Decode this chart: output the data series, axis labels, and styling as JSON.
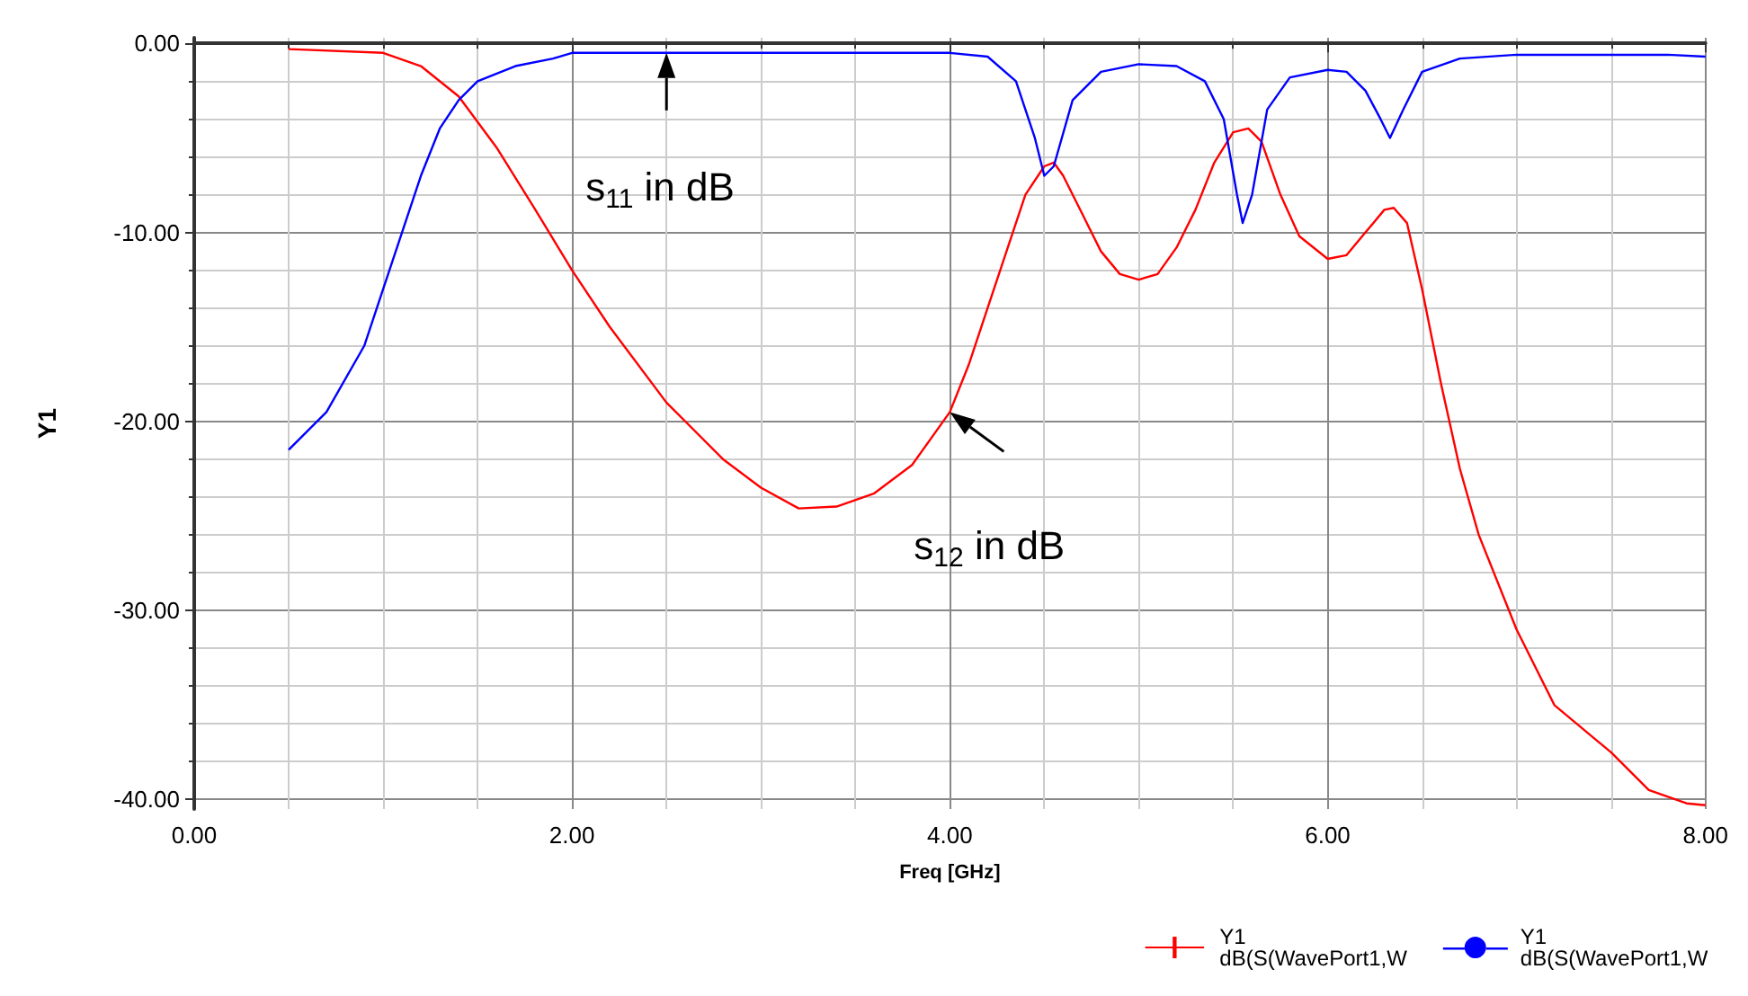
{
  "chart_data": {
    "type": "line",
    "xlabel": "Freq [GHz]",
    "ylabel": "Y1",
    "xlim": [
      0,
      8
    ],
    "xticks": [
      {
        "value": 0,
        "label": "0.00"
      },
      {
        "value": 2,
        "label": "2.00"
      },
      {
        "value": 4,
        "label": "4.00"
      },
      {
        "value": 6,
        "label": "6.00"
      },
      {
        "value": 8,
        "label": "8.00"
      }
    ],
    "ylim": [
      -40.5,
      0.3
    ],
    "yticks": [
      {
        "value": 0,
        "label": "0.00"
      },
      {
        "value": -10,
        "label": "-10.00"
      },
      {
        "value": -20,
        "label": "-20.00"
      },
      {
        "value": -30,
        "label": "-30.00"
      },
      {
        "value": -40,
        "label": "-40.00"
      }
    ],
    "grid": true,
    "legend": "bottom right",
    "marker": "none",
    "line_style": "solid",
    "series": [
      {
        "name": "Y1\ndB(S(WavePort1,W",
        "color": "#ff0000",
        "x": [
          0.5,
          1.0,
          1.2,
          1.4,
          1.6,
          1.8,
          2.0,
          2.2,
          2.5,
          2.8,
          3.0,
          3.2,
          3.4,
          3.6,
          3.8,
          4.0,
          4.1,
          4.2,
          4.3,
          4.4,
          4.5,
          4.55,
          4.6,
          4.7,
          4.8,
          4.9,
          5.0,
          5.1,
          5.2,
          5.3,
          5.4,
          5.5,
          5.58,
          5.65,
          5.75,
          5.85,
          6.0,
          6.1,
          6.2,
          6.3,
          6.35,
          6.42,
          6.5,
          6.6,
          6.7,
          6.8,
          7.0,
          7.2,
          7.5,
          7.7,
          7.9,
          8.0
        ],
        "values": [
          -0.3,
          -0.5,
          -1.2,
          -2.8,
          -5.5,
          -8.7,
          -12,
          -15,
          -19,
          -22,
          -23.5,
          -24.6,
          -24.5,
          -23.8,
          -22.3,
          -19.5,
          -17,
          -14,
          -11,
          -8,
          -6.5,
          -6.3,
          -7,
          -9,
          -11,
          -12.2,
          -12.5,
          -12.2,
          -10.8,
          -8.8,
          -6.3,
          -4.7,
          -4.5,
          -5.2,
          -8,
          -10.2,
          -11.4,
          -11.2,
          -10,
          -8.8,
          -8.7,
          -9.5,
          -13,
          -18,
          -22.5,
          -26,
          -31,
          -35,
          -37.5,
          -39.5,
          -40.2,
          -40.3
        ]
      },
      {
        "name": "Y1\ndB(S(WavePort1,W ",
        "color": "#0000ff",
        "x": [
          0.5,
          0.7,
          0.9,
          1.0,
          1.1,
          1.2,
          1.3,
          1.4,
          1.5,
          1.7,
          1.9,
          2.0,
          3.0,
          4.0,
          4.2,
          4.35,
          4.45,
          4.5,
          4.55,
          4.65,
          4.8,
          5.0,
          5.2,
          5.35,
          5.45,
          5.52,
          5.55,
          5.6,
          5.68,
          5.8,
          6.0,
          6.1,
          6.2,
          6.28,
          6.33,
          6.4,
          6.5,
          6.7,
          7.0,
          7.8,
          8.0
        ],
        "values": [
          -21.5,
          -19.5,
          -16,
          -13,
          -10,
          -7,
          -4.5,
          -3,
          -2,
          -1.2,
          -0.8,
          -0.5,
          -0.5,
          -0.5,
          -0.7,
          -2,
          -5,
          -7,
          -6.5,
          -3,
          -1.5,
          -1.1,
          -1.2,
          -2,
          -4,
          -8,
          -9.5,
          -8,
          -3.5,
          -1.8,
          -1.4,
          -1.5,
          -2.5,
          -4,
          -5,
          -3.5,
          -1.5,
          -0.8,
          -0.6,
          -0.6,
          -0.7
        ]
      }
    ],
    "annotations": [
      {
        "text": "s$_{11}$ in dB",
        "x": 2.5,
        "y": -0.5
      },
      {
        "text": "s$_{12}$ in dB",
        "x": 4.0,
        "y": -19.5
      }
    ]
  }
}
